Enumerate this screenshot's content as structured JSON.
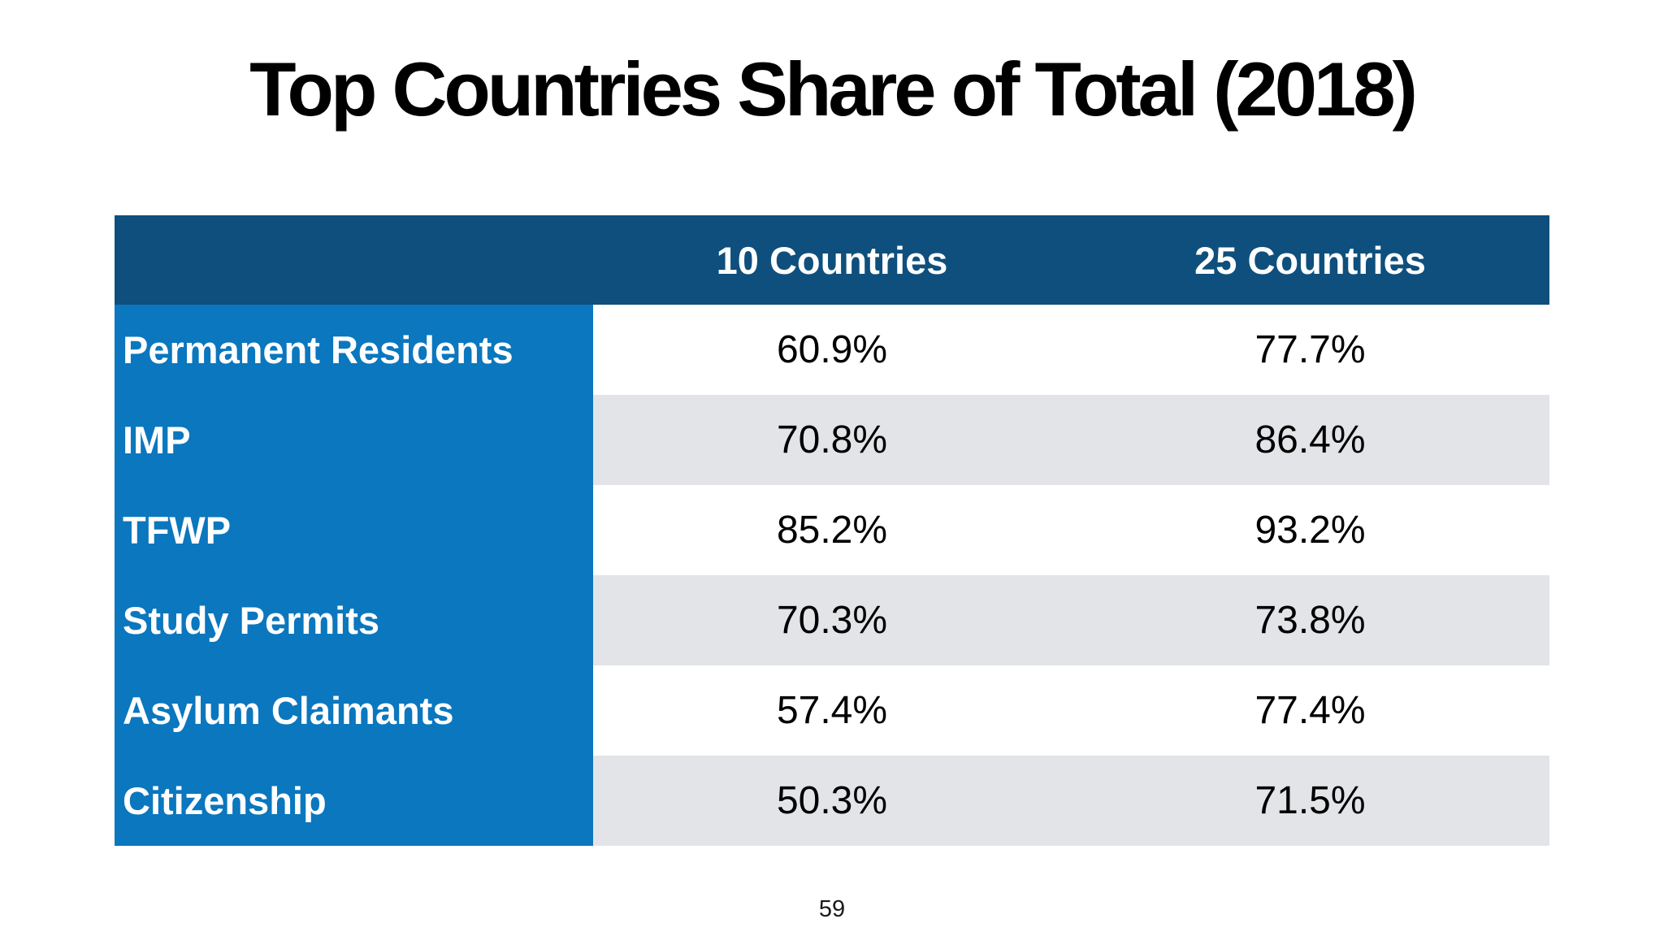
{
  "slide": {
    "title": "Top Countries Share of Total (2018)",
    "page_number": "59"
  },
  "table": {
    "columns": [
      "10 Countries",
      "25 Countries"
    ],
    "rows": [
      {
        "label": "Permanent Residents",
        "values": [
          "60.9%",
          "77.7%"
        ]
      },
      {
        "label": "IMP",
        "values": [
          "70.8%",
          "86.4%"
        ]
      },
      {
        "label": "TFWP",
        "values": [
          "85.2%",
          "93.2%"
        ]
      },
      {
        "label": "Study Permits",
        "values": [
          "70.3%",
          "73.8%"
        ]
      },
      {
        "label": "Asylum Claimants",
        "values": [
          "57.4%",
          "77.4%"
        ]
      },
      {
        "label": "Citizenship",
        "values": [
          "50.3%",
          "71.5%"
        ]
      }
    ]
  },
  "colors": {
    "header_bg": "#0E4F7D",
    "label_column_bg": "#0A77BE",
    "stripe_row_bg": "#E3E4E7",
    "header_text": "#FFFFFF",
    "label_text": "#FFFFFF",
    "value_text": "#000000",
    "title_text": "#000000"
  }
}
